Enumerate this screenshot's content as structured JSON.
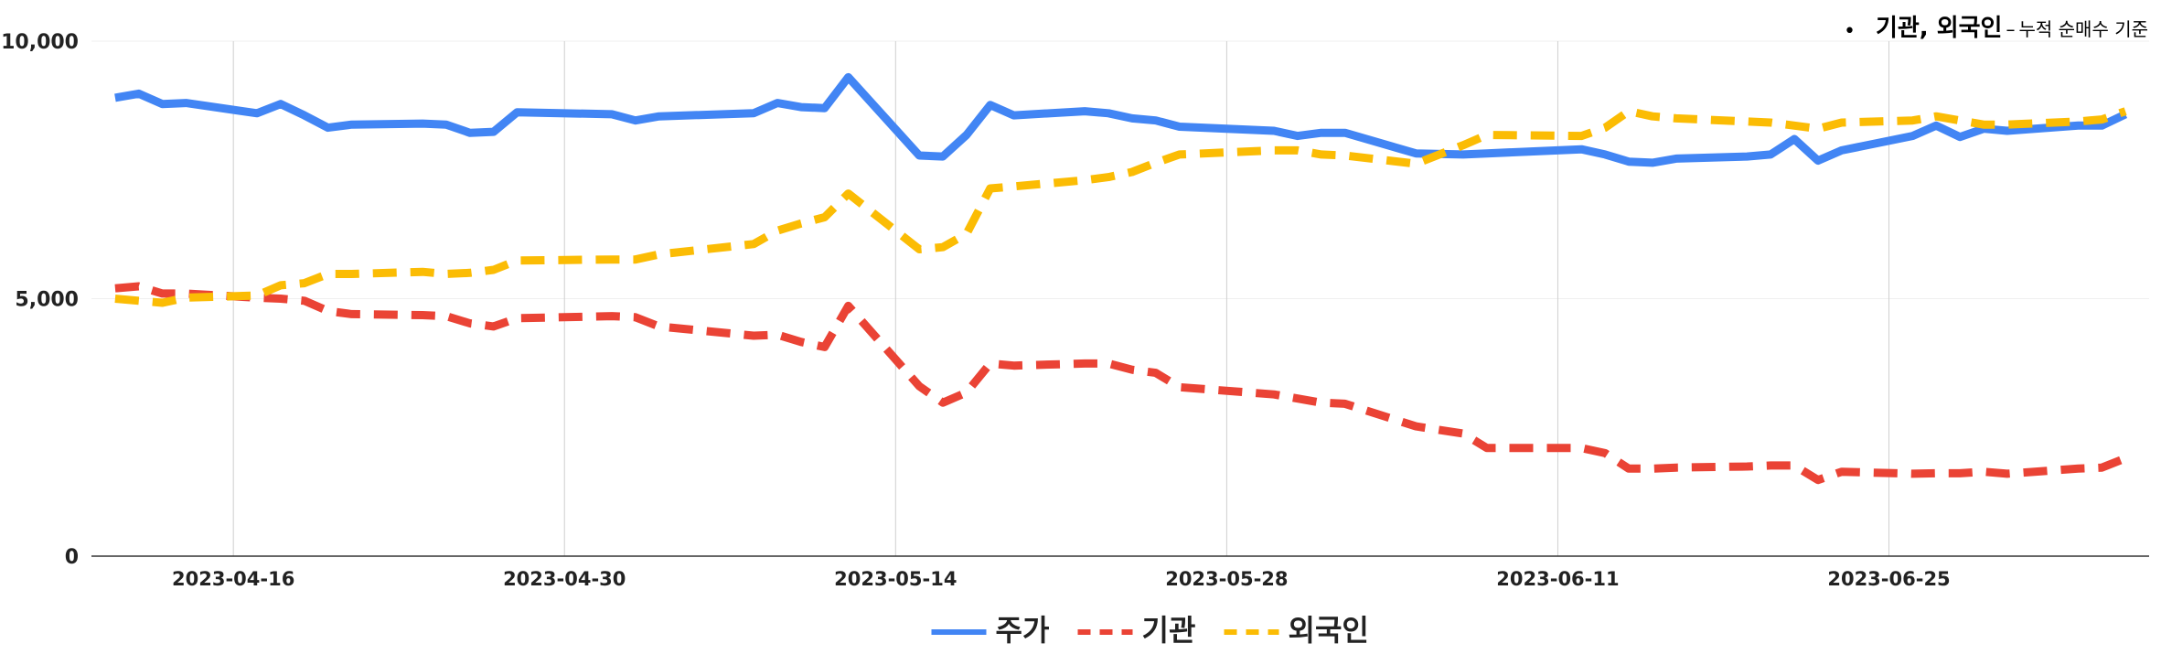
{
  "note": {
    "bullet": "•",
    "main": "기관, 외국인",
    "dash": "–",
    "sub": "누적 순매수 기준"
  },
  "chart_data": {
    "type": "line",
    "title": "",
    "xlabel": "",
    "ylabel": "",
    "x_range": [
      "2023-04-10",
      "2023-07-06"
    ],
    "ylim": [
      0,
      10000
    ],
    "y_ticks": [
      0,
      5000,
      10000
    ],
    "y_tick_labels": [
      "0",
      "5,000",
      "10,000"
    ],
    "x_ticks": [
      "2023-04-16",
      "2023-04-30",
      "2023-05-14",
      "2023-05-28",
      "2023-06-11",
      "2023-06-25"
    ],
    "grid": true,
    "legend_position": "bottom",
    "series": [
      {
        "name": "주가",
        "color": "#4285F4",
        "dash": "solid",
        "points": [
          [
            "2023-04-11",
            8900
          ],
          [
            "2023-04-12",
            8980
          ],
          [
            "2023-04-13",
            8780
          ],
          [
            "2023-04-14",
            8800
          ],
          [
            "2023-04-17",
            8600
          ],
          [
            "2023-04-18",
            8780
          ],
          [
            "2023-04-19",
            8560
          ],
          [
            "2023-04-20",
            8320
          ],
          [
            "2023-04-21",
            8380
          ],
          [
            "2023-04-24",
            8400
          ],
          [
            "2023-04-25",
            8380
          ],
          [
            "2023-04-26",
            8220
          ],
          [
            "2023-04-27",
            8240
          ],
          [
            "2023-04-28",
            8620
          ],
          [
            "2023-05-02",
            8580
          ],
          [
            "2023-05-03",
            8460
          ],
          [
            "2023-05-04",
            8540
          ],
          [
            "2023-05-08",
            8600
          ],
          [
            "2023-05-09",
            8800
          ],
          [
            "2023-05-10",
            8720
          ],
          [
            "2023-05-11",
            8700
          ],
          [
            "2023-05-12",
            9300
          ],
          [
            "2023-05-15",
            7780
          ],
          [
            "2023-05-16",
            7760
          ],
          [
            "2023-05-17",
            8180
          ],
          [
            "2023-05-18",
            8760
          ],
          [
            "2023-05-19",
            8560
          ],
          [
            "2023-05-22",
            8640
          ],
          [
            "2023-05-23",
            8600
          ],
          [
            "2023-05-24",
            8500
          ],
          [
            "2023-05-25",
            8460
          ],
          [
            "2023-05-26",
            8340
          ],
          [
            "2023-05-30",
            8260
          ],
          [
            "2023-05-31",
            8160
          ],
          [
            "2023-06-01",
            8220
          ],
          [
            "2023-06-02",
            8220
          ],
          [
            "2023-06-05",
            7820
          ],
          [
            "2023-06-07",
            7800
          ],
          [
            "2023-06-08",
            7820
          ],
          [
            "2023-06-12",
            7900
          ],
          [
            "2023-06-13",
            7800
          ],
          [
            "2023-06-14",
            7660
          ],
          [
            "2023-06-15",
            7640
          ],
          [
            "2023-06-16",
            7720
          ],
          [
            "2023-06-19",
            7760
          ],
          [
            "2023-06-20",
            7800
          ],
          [
            "2023-06-21",
            8100
          ],
          [
            "2023-06-22",
            7680
          ],
          [
            "2023-06-23",
            7880
          ],
          [
            "2023-06-26",
            8160
          ],
          [
            "2023-06-27",
            8360
          ],
          [
            "2023-06-28",
            8140
          ],
          [
            "2023-06-29",
            8300
          ],
          [
            "2023-06-30",
            8260
          ],
          [
            "2023-07-03",
            8360
          ],
          [
            "2023-07-04",
            8360
          ],
          [
            "2023-07-05",
            8580
          ]
        ]
      },
      {
        "name": "기관",
        "color": "#EA4335",
        "dash": "dashed",
        "points": [
          [
            "2023-04-11",
            5200
          ],
          [
            "2023-04-12",
            5240
          ],
          [
            "2023-04-13",
            5100
          ],
          [
            "2023-04-14",
            5100
          ],
          [
            "2023-04-17",
            5020
          ],
          [
            "2023-04-18",
            5000
          ],
          [
            "2023-04-19",
            4960
          ],
          [
            "2023-04-20",
            4760
          ],
          [
            "2023-04-21",
            4700
          ],
          [
            "2023-04-24",
            4680
          ],
          [
            "2023-04-25",
            4660
          ],
          [
            "2023-04-26",
            4520
          ],
          [
            "2023-04-27",
            4460
          ],
          [
            "2023-04-28",
            4620
          ],
          [
            "2023-05-02",
            4660
          ],
          [
            "2023-05-03",
            4640
          ],
          [
            "2023-05-04",
            4460
          ],
          [
            "2023-05-08",
            4280
          ],
          [
            "2023-05-09",
            4300
          ],
          [
            "2023-05-10",
            4160
          ],
          [
            "2023-05-11",
            4060
          ],
          [
            "2023-05-12",
            4860
          ],
          [
            "2023-05-15",
            3300
          ],
          [
            "2023-05-16",
            2980
          ],
          [
            "2023-05-17",
            3180
          ],
          [
            "2023-05-18",
            3740
          ],
          [
            "2023-05-19",
            3700
          ],
          [
            "2023-05-22",
            3740
          ],
          [
            "2023-05-23",
            3740
          ],
          [
            "2023-05-24",
            3620
          ],
          [
            "2023-05-25",
            3560
          ],
          [
            "2023-05-26",
            3280
          ],
          [
            "2023-05-30",
            3140
          ],
          [
            "2023-05-31",
            3060
          ],
          [
            "2023-06-01",
            2980
          ],
          [
            "2023-06-02",
            2960
          ],
          [
            "2023-06-05",
            2520
          ],
          [
            "2023-06-07",
            2380
          ],
          [
            "2023-06-08",
            2100
          ],
          [
            "2023-06-12",
            2100
          ],
          [
            "2023-06-13",
            2000
          ],
          [
            "2023-06-14",
            1700
          ],
          [
            "2023-06-15",
            1700
          ],
          [
            "2023-06-16",
            1720
          ],
          [
            "2023-06-19",
            1740
          ],
          [
            "2023-06-20",
            1760
          ],
          [
            "2023-06-21",
            1760
          ],
          [
            "2023-06-22",
            1480
          ],
          [
            "2023-06-23",
            1640
          ],
          [
            "2023-06-26",
            1600
          ],
          [
            "2023-06-27",
            1610
          ],
          [
            "2023-06-28",
            1610
          ],
          [
            "2023-06-29",
            1640
          ],
          [
            "2023-06-30",
            1600
          ],
          [
            "2023-07-03",
            1700
          ],
          [
            "2023-07-04",
            1720
          ],
          [
            "2023-07-05",
            1900
          ]
        ]
      },
      {
        "name": "외국인",
        "color": "#FBBC04",
        "dash": "dashed",
        "points": [
          [
            "2023-04-11",
            5000
          ],
          [
            "2023-04-12",
            4960
          ],
          [
            "2023-04-13",
            4920
          ],
          [
            "2023-04-14",
            5020
          ],
          [
            "2023-04-17",
            5060
          ],
          [
            "2023-04-18",
            5260
          ],
          [
            "2023-04-19",
            5300
          ],
          [
            "2023-04-20",
            5480
          ],
          [
            "2023-04-21",
            5480
          ],
          [
            "2023-04-24",
            5520
          ],
          [
            "2023-04-25",
            5480
          ],
          [
            "2023-04-26",
            5500
          ],
          [
            "2023-04-27",
            5560
          ],
          [
            "2023-04-28",
            5740
          ],
          [
            "2023-05-02",
            5760
          ],
          [
            "2023-05-03",
            5760
          ],
          [
            "2023-05-04",
            5860
          ],
          [
            "2023-05-08",
            6060
          ],
          [
            "2023-05-09",
            6320
          ],
          [
            "2023-05-10",
            6460
          ],
          [
            "2023-05-11",
            6580
          ],
          [
            "2023-05-12",
            7040
          ],
          [
            "2023-05-15",
            5960
          ],
          [
            "2023-05-16",
            6000
          ],
          [
            "2023-05-17",
            6260
          ],
          [
            "2023-05-18",
            7140
          ],
          [
            "2023-05-19",
            7180
          ],
          [
            "2023-05-22",
            7300
          ],
          [
            "2023-05-23",
            7360
          ],
          [
            "2023-05-24",
            7460
          ],
          [
            "2023-05-25",
            7640
          ],
          [
            "2023-05-26",
            7800
          ],
          [
            "2023-05-30",
            7880
          ],
          [
            "2023-05-31",
            7880
          ],
          [
            "2023-06-01",
            7800
          ],
          [
            "2023-06-02",
            7780
          ],
          [
            "2023-06-05",
            7620
          ],
          [
            "2023-06-07",
            7980
          ],
          [
            "2023-06-08",
            8180
          ],
          [
            "2023-06-12",
            8160
          ],
          [
            "2023-06-13",
            8320
          ],
          [
            "2023-06-14",
            8640
          ],
          [
            "2023-06-15",
            8540
          ],
          [
            "2023-06-16",
            8500
          ],
          [
            "2023-06-19",
            8440
          ],
          [
            "2023-06-20",
            8420
          ],
          [
            "2023-06-21",
            8360
          ],
          [
            "2023-06-22",
            8300
          ],
          [
            "2023-06-23",
            8420
          ],
          [
            "2023-06-26",
            8460
          ],
          [
            "2023-06-27",
            8540
          ],
          [
            "2023-06-28",
            8460
          ],
          [
            "2023-06-29",
            8380
          ],
          [
            "2023-06-30",
            8380
          ],
          [
            "2023-07-03",
            8440
          ],
          [
            "2023-07-04",
            8480
          ],
          [
            "2023-07-05",
            8640
          ]
        ]
      }
    ]
  }
}
